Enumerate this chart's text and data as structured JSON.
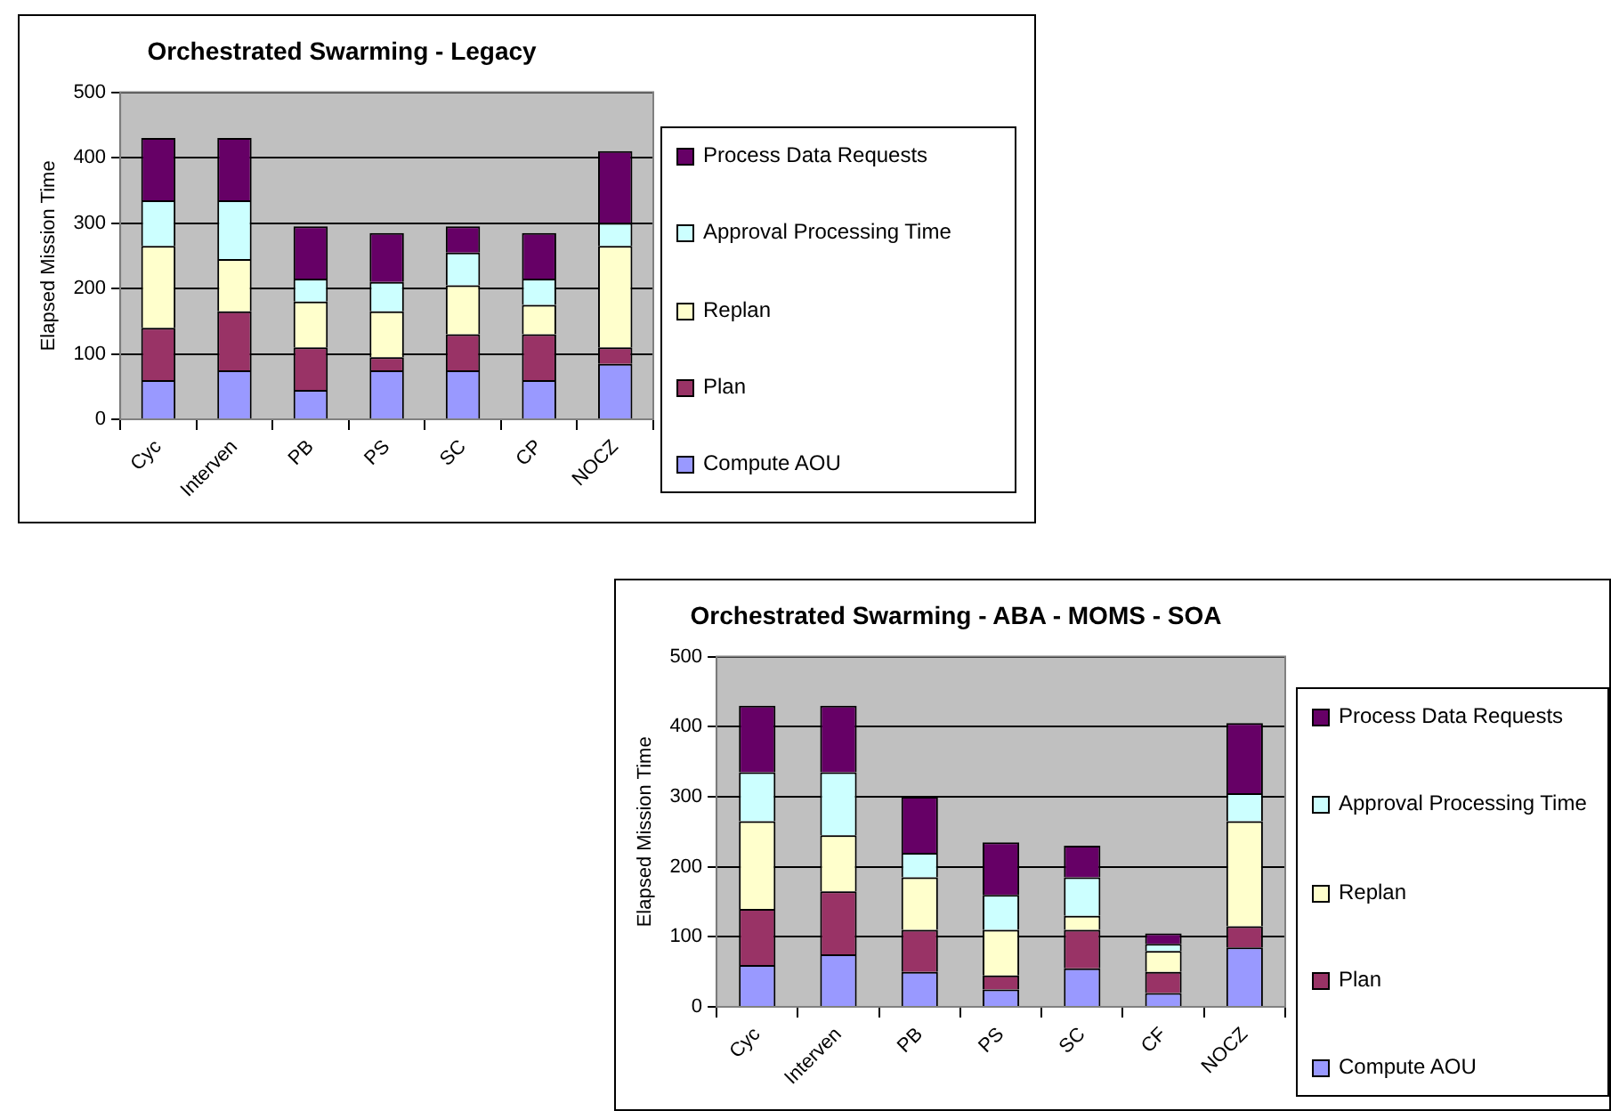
{
  "chart_data": [
    {
      "type": "bar",
      "stacked": true,
      "title": "Orchestrated Swarming - Legacy",
      "ylabel": "Elapsed Mission Time",
      "categories": [
        "Cyc",
        "Interven",
        "PB",
        "PS",
        "SC",
        "CP",
        "NOCZ"
      ],
      "ylim": [
        0,
        500
      ],
      "yticks": [
        0,
        100,
        200,
        300,
        400,
        500
      ],
      "grid": "y",
      "legend": "right",
      "series": [
        {
          "name": "Compute AOU",
          "color": "#9999ff",
          "values": [
            60,
            75,
            45,
            75,
            75,
            60,
            85
          ]
        },
        {
          "name": "Plan",
          "color": "#993366",
          "values": [
            80,
            90,
            65,
            20,
            55,
            70,
            25
          ]
        },
        {
          "name": "Replan",
          "color": "#ffffcc",
          "values": [
            125,
            80,
            70,
            70,
            75,
            45,
            155
          ]
        },
        {
          "name": "Approval Processing Time",
          "color": "#ccffff",
          "values": [
            70,
            90,
            35,
            45,
            50,
            40,
            35
          ]
        },
        {
          "name": "Process Data Requests",
          "color": "#660066",
          "values": [
            95,
            95,
            80,
            75,
            40,
            70,
            110
          ]
        }
      ]
    },
    {
      "type": "bar",
      "stacked": true,
      "title": "Orchestrated Swarming - ABA - MOMS - SOA",
      "ylabel": "Elapsed Mission Time",
      "categories": [
        "Cyc",
        "Interven",
        "PB",
        "PS",
        "SC",
        "CF",
        "NOCZ"
      ],
      "ylim": [
        0,
        500
      ],
      "yticks": [
        0,
        100,
        200,
        300,
        400,
        500
      ],
      "grid": "y",
      "legend": "right",
      "series": [
        {
          "name": "Compute AOU",
          "color": "#9999ff",
          "values": [
            60,
            75,
            50,
            25,
            55,
            20,
            85
          ]
        },
        {
          "name": "Plan",
          "color": "#993366",
          "values": [
            80,
            90,
            60,
            20,
            55,
            30,
            30
          ]
        },
        {
          "name": "Replan",
          "color": "#ffffcc",
          "values": [
            125,
            80,
            75,
            65,
            20,
            30,
            150
          ]
        },
        {
          "name": "Approval Processing Time",
          "color": "#ccffff",
          "values": [
            70,
            90,
            35,
            50,
            55,
            10,
            40
          ]
        },
        {
          "name": "Process Data Requests",
          "color": "#660066",
          "values": [
            95,
            95,
            80,
            75,
            45,
            15,
            100
          ]
        }
      ]
    }
  ]
}
